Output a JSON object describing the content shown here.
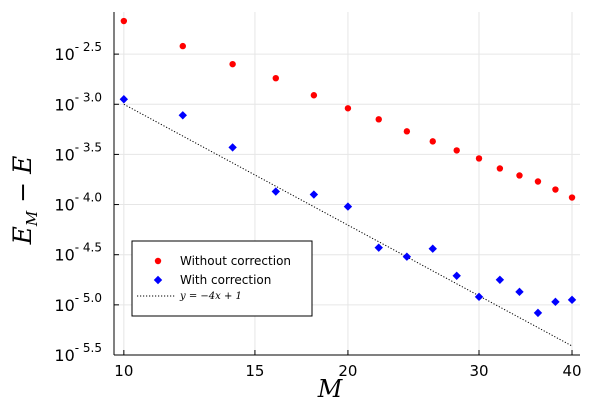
{
  "chart_data": {
    "type": "scatter",
    "xlabel": "M",
    "ylabel": "E_M − E",
    "x_scale": "log",
    "y_scale": "log10",
    "xlim": [
      9.7,
      41
    ],
    "ylim_log10": [
      -5.5,
      -2.08
    ],
    "x_ticks": [
      10,
      15,
      20,
      30,
      40
    ],
    "y_ticks_log10": [
      -2.5,
      -3.0,
      -3.5,
      -4.0,
      -4.5,
      -5.0,
      -5.5
    ],
    "y_tick_labels": [
      "10- 2.5",
      "10- 3.0",
      "10- 3.5",
      "10- 4.0",
      "10- 4.5",
      "10- 5.0",
      "10- 5.5"
    ],
    "grid": true,
    "legend_position": "bottom-left",
    "series": [
      {
        "name": "Without correction",
        "marker": "circle",
        "color": "#ff0000",
        "x": [
          10,
          12,
          14,
          16,
          18,
          20,
          22,
          24,
          26,
          28,
          30,
          32,
          34,
          36,
          38,
          40
        ],
        "y_log10": [
          -2.17,
          -2.42,
          -2.6,
          -2.74,
          -2.91,
          -3.04,
          -3.15,
          -3.27,
          -3.37,
          -3.46,
          -3.54,
          -3.64,
          -3.71,
          -3.77,
          -3.85,
          -3.93
        ]
      },
      {
        "name": "With correction",
        "marker": "diamond",
        "color": "#0000ff",
        "x": [
          10,
          12,
          14,
          16,
          18,
          20,
          22,
          24,
          26,
          28,
          30,
          32,
          34,
          36,
          38,
          40
        ],
        "y_log10": [
          -2.95,
          -3.11,
          -3.43,
          -3.87,
          -3.9,
          -4.02,
          -4.43,
          -4.52,
          -4.44,
          -4.71,
          -4.92,
          -4.75,
          -4.87,
          -5.08,
          -4.97,
          -4.95
        ]
      },
      {
        "name": "y = −4x + 1",
        "style": "dotted-line",
        "color": "#000000",
        "equation": "log10(y) = -4 log10(M) + 1",
        "x": [
          10,
          40
        ],
        "y_log10": [
          -3.0,
          -5.41
        ]
      }
    ],
    "legend": [
      {
        "label": "Without correction",
        "marker": "circle",
        "color": "#ff0000"
      },
      {
        "label": "With correction",
        "marker": "diamond",
        "color": "#0000ff"
      },
      {
        "label": "y = −4x + 1",
        "marker": "line",
        "color": "#000000"
      }
    ]
  }
}
